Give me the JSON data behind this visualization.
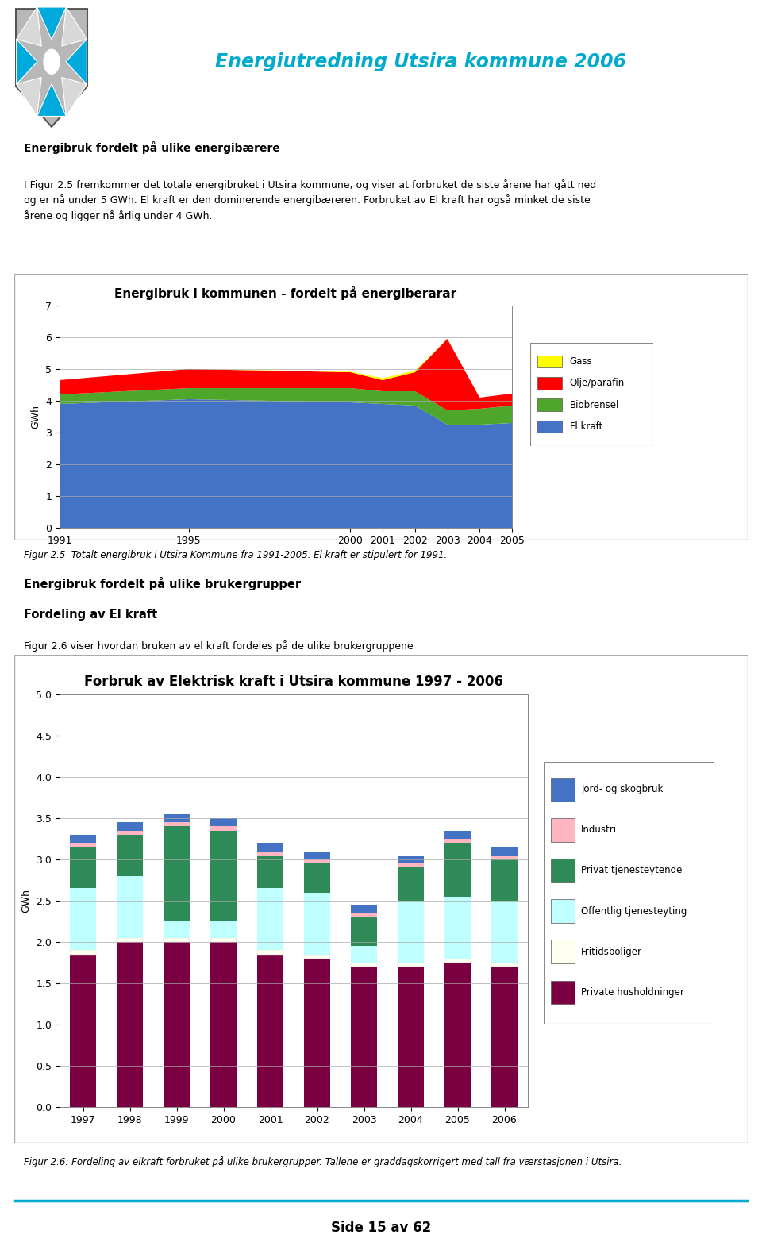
{
  "page_title": "Energiutredning Utsira kommune 2006",
  "page_title_color": "#00AACC",
  "background_color": "#ffffff",
  "heading1": "Energibruk fordelt på ulike energibærere",
  "para1": "I Figur 2.5 fremkommer det totale energibruket i Utsira kommune, og viser at forbruket de siste årene har gått ned\nog er nå under 5 GWh. El kraft er den dominerende energibæreren. Forbruket av El kraft har også minket de siste\nårene og ligger nå årlig under 4 GWh.",
  "chart1_title": "Energibruk i kommunen - fordelt på energiberarar",
  "chart1_ylabel": "GWh",
  "chart1_ylim": [
    0,
    7
  ],
  "chart1_yticks": [
    0,
    1,
    2,
    3,
    4,
    5,
    6,
    7
  ],
  "chart1_years": [
    1991,
    1995,
    2000,
    2001,
    2002,
    2003,
    2004,
    2005
  ],
  "chart1_el_kraft": [
    3.9,
    4.05,
    3.95,
    3.9,
    3.85,
    3.25,
    3.25,
    3.3
  ],
  "chart1_biobrensel": [
    0.3,
    0.35,
    0.45,
    0.4,
    0.45,
    0.45,
    0.5,
    0.55
  ],
  "chart1_olje": [
    0.45,
    0.6,
    0.5,
    0.35,
    0.6,
    2.25,
    0.35,
    0.38
  ],
  "chart1_gass": [
    0.0,
    0.0,
    0.02,
    0.06,
    0.05,
    0.0,
    0.0,
    0.0
  ],
  "chart1_colors": {
    "el_kraft": "#4472C4",
    "biobrensel": "#4EA72A",
    "olje": "#FF0000",
    "gass": "#FFFF00"
  },
  "chart1_legend": [
    "Gass",
    "Olje/parafin",
    "Biobrensel",
    "El.kraft"
  ],
  "chart1_legend_colors": [
    "#FFFF00",
    "#FF0000",
    "#4EA72A",
    "#4472C4"
  ],
  "chart1_caption": "Figur 2.5  Totalt energibruk i Utsira Kommune fra 1991-2005. El kraft er stipulert for 1991.",
  "heading2": "Energibruk fordelt på ulike brukergrupper",
  "heading3": "Fordeling av El kraft",
  "para2": "Figur 2.6 viser hvordan bruken av el kraft fordeles på de ulike brukergruppene",
  "chart2_title": "Forbruk av Elektrisk kraft i Utsira kommune 1997 - 2006",
  "chart2_ylabel": "GWh",
  "chart2_ylim": [
    0.0,
    5.0
  ],
  "chart2_yticks": [
    0.0,
    0.5,
    1.0,
    1.5,
    2.0,
    2.5,
    3.0,
    3.5,
    4.0,
    4.5,
    5.0
  ],
  "chart2_years": [
    1997,
    1998,
    1999,
    2000,
    2001,
    2002,
    2003,
    2004,
    2005,
    2006
  ],
  "chart2_private_husholdninger": [
    1.85,
    2.0,
    2.0,
    2.0,
    1.85,
    1.8,
    1.7,
    1.7,
    1.75,
    1.7
  ],
  "chart2_fritidsboliger": [
    0.05,
    0.05,
    0.05,
    0.05,
    0.05,
    0.05,
    0.05,
    0.05,
    0.05,
    0.05
  ],
  "chart2_offentlig": [
    0.75,
    0.75,
    0.2,
    0.2,
    0.75,
    0.75,
    0.2,
    0.75,
    0.75,
    0.75
  ],
  "chart2_privat_tjeneste": [
    0.5,
    0.5,
    1.15,
    1.1,
    0.4,
    0.35,
    0.35,
    0.4,
    0.65,
    0.5
  ],
  "chart2_industri": [
    0.05,
    0.05,
    0.05,
    0.05,
    0.05,
    0.05,
    0.05,
    0.05,
    0.05,
    0.05
  ],
  "chart2_jord_skogbruk": [
    0.1,
    0.1,
    0.1,
    0.1,
    0.1,
    0.1,
    0.1,
    0.1,
    0.1,
    0.1
  ],
  "chart2_colors": {
    "private_husholdninger": "#7B0041",
    "fritidsboliger": "#FFFFF0",
    "offentlig": "#C0FFFF",
    "privat_tjeneste": "#2E8B57",
    "industri": "#FFB6C1",
    "jord_skogbruk": "#4472C4"
  },
  "chart2_legend": [
    "Jord- og skogbruk",
    "Industri",
    "Privat tjenesteytende",
    "Offentlig tjenesteyting",
    "Fritidsboliger",
    "Private husholdninger"
  ],
  "chart2_legend_colors": [
    "#4472C4",
    "#FFB6C1",
    "#2E8B57",
    "#C0FFFF",
    "#FFFFF0",
    "#7B0041"
  ],
  "chart2_caption": "Figur 2.6: Fordeling av elkraft forbruket på ulike brukergrupper. Tallene er graddagskorrigert med tall fra værstasjonen i Utsira.",
  "footer_text": "Side 15 av 62",
  "footer_line_color": "#00AACC"
}
